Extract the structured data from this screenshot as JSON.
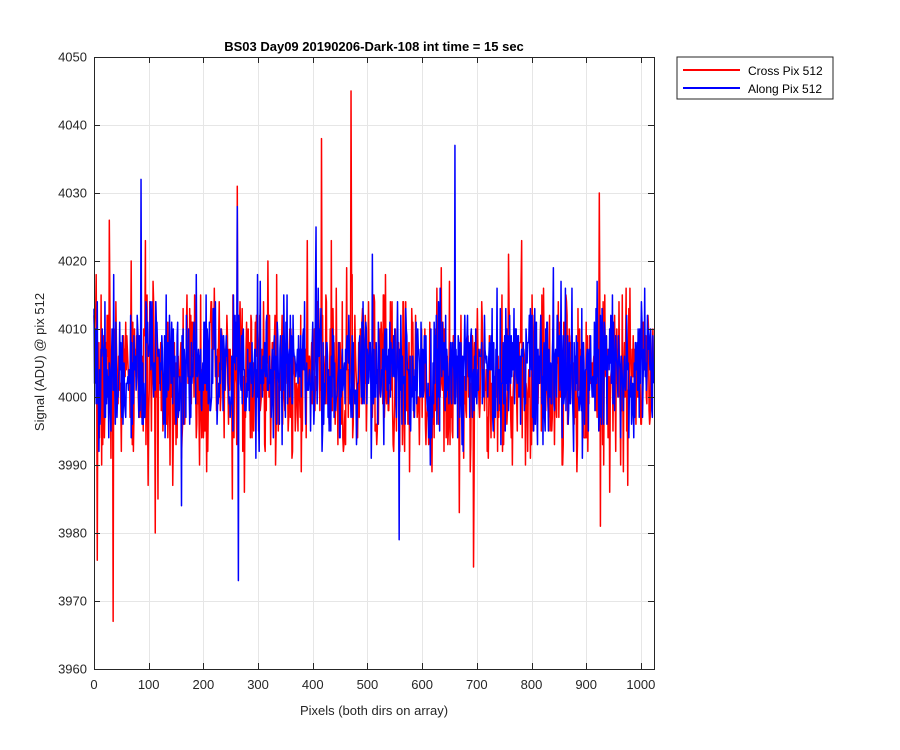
{
  "chart_data": {
    "type": "line",
    "title": "BS03 Day09 20190206-Dark-108 int time = 15 sec",
    "xlabel": "Pixels (both dirs on array)",
    "ylabel": "Signal (ADU) @ pix 512",
    "xlim": [
      0,
      1024
    ],
    "ylim": [
      3960,
      4050
    ],
    "xticks": [
      0,
      100,
      200,
      300,
      400,
      500,
      600,
      700,
      800,
      900,
      1000
    ],
    "yticks": [
      3960,
      3970,
      3980,
      3990,
      4000,
      4010,
      4020,
      4030,
      4040,
      4050
    ],
    "grid": true,
    "legend_position": "outside-top-right",
    "noise": {
      "n": 1024,
      "step": 1
    },
    "series": [
      {
        "name": "Cross Pix 512",
        "color": "#ff0000",
        "mean": 4003,
        "std": 6.5,
        "seed": 7,
        "notable": [
          [
            6,
            3976
          ],
          [
            35,
            3967
          ],
          [
            28,
            4026
          ],
          [
            112,
            3980
          ],
          [
            262,
            4031
          ],
          [
            416,
            4038
          ],
          [
            470,
            4045
          ],
          [
            694,
            3975
          ],
          [
            758,
            4021
          ],
          [
            924,
            4030
          ],
          [
            926,
            3981
          ]
        ]
      },
      {
        "name": "Along Pix 512",
        "color": "#0000ff",
        "mean": 4004,
        "std": 5.2,
        "seed": 19,
        "notable": [
          [
            86,
            4032
          ],
          [
            264,
            3973
          ],
          [
            558,
            3979
          ],
          [
            660,
            4037
          ],
          [
            262,
            4028
          ],
          [
            406,
            4025
          ],
          [
            160,
            3984
          ]
        ]
      }
    ]
  }
}
